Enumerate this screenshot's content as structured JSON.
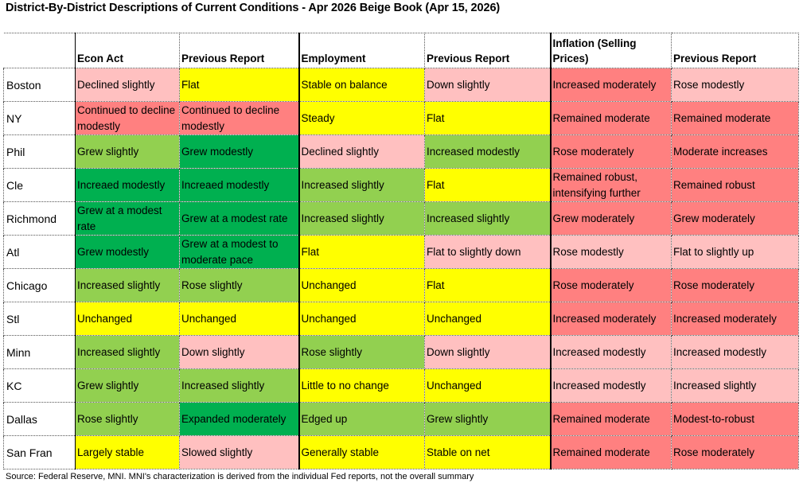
{
  "title": "District-By-District Descriptions of Current Conditions - Apr 2026 Beige Book (Apr 15, 2026)",
  "colors": {
    "red": "#ff8080",
    "pink": "#ffc0c0",
    "yellow": "#ffff00",
    "light_green": "#92d050",
    "dark_green": "#00b050"
  },
  "headers": [
    "",
    "Econ Act",
    "Previous Report",
    "Employment",
    "Previous Report",
    "Inflation (Selling Prices)",
    "Previous Report"
  ],
  "rows": [
    {
      "district": "Boston",
      "cells": [
        {
          "text": "Declined slightly",
          "color": "pink"
        },
        {
          "text": "Flat",
          "color": "yellow"
        },
        {
          "text": "Stable on balance",
          "color": "yellow"
        },
        {
          "text": "Down slightly",
          "color": "pink"
        },
        {
          "text": "Increased moderately",
          "color": "red"
        },
        {
          "text": "Rose modestly",
          "color": "pink"
        }
      ]
    },
    {
      "district": "NY",
      "cells": [
        {
          "text": "Continued to decline modestly",
          "color": "red"
        },
        {
          "text": "Continued to decline modestly",
          "color": "red"
        },
        {
          "text": "Steady",
          "color": "yellow"
        },
        {
          "text": "Flat",
          "color": "yellow"
        },
        {
          "text": "Remained moderate",
          "color": "red"
        },
        {
          "text": "Remained moderate",
          "color": "red"
        }
      ]
    },
    {
      "district": "Phil",
      "cells": [
        {
          "text": "Grew slightly",
          "color": "light_green"
        },
        {
          "text": "Grew modestly",
          "color": "dark_green"
        },
        {
          "text": "Declined slightly",
          "color": "pink"
        },
        {
          "text": "Increased modestly",
          "color": "light_green"
        },
        {
          "text": "Rose moderately",
          "color": "red"
        },
        {
          "text": "Moderate increases",
          "color": "red"
        }
      ]
    },
    {
      "district": "Cle",
      "cells": [
        {
          "text": "Increaed modestly",
          "color": "dark_green"
        },
        {
          "text": "Increaed modestly",
          "color": "dark_green"
        },
        {
          "text": "Increased slightly",
          "color": "light_green"
        },
        {
          "text": "Flat",
          "color": "yellow"
        },
        {
          "text": "Remained robust, intensifying further",
          "color": "red"
        },
        {
          "text": "Remained robust",
          "color": "red"
        }
      ]
    },
    {
      "district": "Richmond",
      "cells": [
        {
          "text": "Grew at a modest rate",
          "color": "dark_green"
        },
        {
          "text": "Grew at a modest rate",
          "color": "dark_green"
        },
        {
          "text": "Increased slightly",
          "color": "light_green"
        },
        {
          "text": "Increased slightly",
          "color": "light_green"
        },
        {
          "text": "Grew moderately",
          "color": "red"
        },
        {
          "text": "Grew moderately",
          "color": "red"
        }
      ]
    },
    {
      "district": "Atl",
      "cells": [
        {
          "text": "Grew modestly",
          "color": "dark_green"
        },
        {
          "text": "Grew at a modest to moderate pace",
          "color": "dark_green"
        },
        {
          "text": "Flat",
          "color": "yellow"
        },
        {
          "text": "Flat to slightly down",
          "color": "pink"
        },
        {
          "text": "Rose modestly",
          "color": "pink"
        },
        {
          "text": "Flat to slightly up",
          "color": "pink"
        }
      ]
    },
    {
      "district": "Chicago",
      "cells": [
        {
          "text": "Increased slightly",
          "color": "light_green"
        },
        {
          "text": "Rose slightly",
          "color": "light_green"
        },
        {
          "text": "Unchanged",
          "color": "yellow"
        },
        {
          "text": "Flat",
          "color": "yellow"
        },
        {
          "text": "Rose moderately",
          "color": "red"
        },
        {
          "text": "Rose moderately",
          "color": "red"
        }
      ]
    },
    {
      "district": "Stl",
      "cells": [
        {
          "text": "Unchanged",
          "color": "yellow"
        },
        {
          "text": "Unchanged",
          "color": "yellow"
        },
        {
          "text": "Unchanged",
          "color": "yellow"
        },
        {
          "text": "Unchanged",
          "color": "yellow"
        },
        {
          "text": "Increased moderately",
          "color": "red"
        },
        {
          "text": "Increased moderately",
          "color": "red"
        }
      ]
    },
    {
      "district": "Minn",
      "cells": [
        {
          "text": "Increased slightly",
          "color": "light_green"
        },
        {
          "text": "Down slightly",
          "color": "pink"
        },
        {
          "text": "Rose slightly",
          "color": "light_green"
        },
        {
          "text": "Down slightly",
          "color": "pink"
        },
        {
          "text": "Increased modestly",
          "color": "pink"
        },
        {
          "text": "Increased modestly",
          "color": "pink"
        }
      ]
    },
    {
      "district": "KC",
      "cells": [
        {
          "text": "Grew slightly",
          "color": "light_green"
        },
        {
          "text": "Increased slightly",
          "color": "light_green"
        },
        {
          "text": "Little to no change",
          "color": "yellow"
        },
        {
          "text": "Unchanged",
          "color": "yellow"
        },
        {
          "text": "Increased modestly",
          "color": "pink"
        },
        {
          "text": "Increased slightly",
          "color": "pink"
        }
      ]
    },
    {
      "district": "Dallas",
      "cells": [
        {
          "text": "Rose slightly",
          "color": "light_green"
        },
        {
          "text": "Expanded moderately",
          "color": "dark_green"
        },
        {
          "text": "Edged up",
          "color": "light_green"
        },
        {
          "text": "Grew slightly",
          "color": "light_green"
        },
        {
          "text": "Remained moderate",
          "color": "red"
        },
        {
          "text": "Modest-to-robust",
          "color": "red"
        }
      ]
    },
    {
      "district": "San Fran",
      "cells": [
        {
          "text": "Largely stable",
          "color": "yellow"
        },
        {
          "text": "Slowed slightly",
          "color": "pink"
        },
        {
          "text": "Generally stable",
          "color": "yellow"
        },
        {
          "text": "Stable on net",
          "color": "yellow"
        },
        {
          "text": "Remained moderate",
          "color": "red"
        },
        {
          "text": "Rose moderately",
          "color": "red"
        }
      ]
    }
  ],
  "source": "Source: Federal Reserve, MNI. MNI's characterization is derived from the individual Fed reports, not the overall summary"
}
